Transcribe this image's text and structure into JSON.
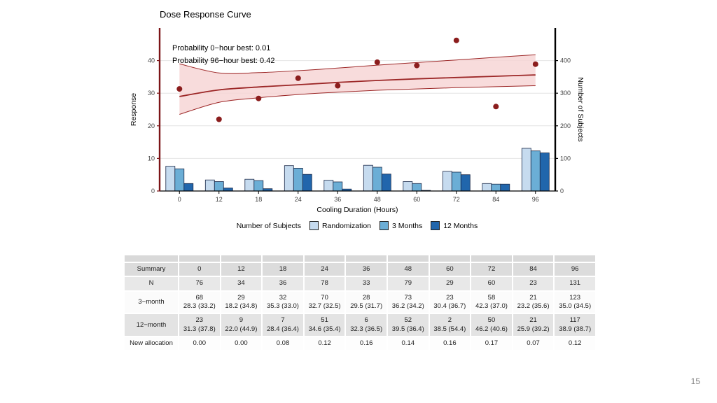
{
  "page": {
    "number": "15"
  },
  "chart": {
    "title": "Dose Response Curve",
    "legend": {
      "title": "Number of Subjects",
      "items": [
        {
          "label": "Randomization",
          "color": "#c6dbef"
        },
        {
          "label": "3 Months",
          "color": "#6baed6"
        },
        {
          "label": "12 Months",
          "color": "#2166ac"
        }
      ]
    }
  },
  "chart_data": {
    "type": "bar",
    "subtype": "dose-response curve with CI band, observed points and grouped subject-count bars",
    "title": "Dose Response Curve",
    "xlabel": "Cooling Duration (Hours)",
    "ylabel_left": "Response",
    "ylabel_right": "Number of Subjects",
    "categories": [
      "0",
      "12",
      "18",
      "24",
      "36",
      "48",
      "60",
      "72",
      "84",
      "96"
    ],
    "ylim_left": [
      0,
      50
    ],
    "ylim_right": [
      0,
      500
    ],
    "y_left_ticks": [
      0,
      10,
      20,
      30,
      40
    ],
    "y_right_ticks": [
      0,
      100,
      200,
      300,
      400
    ],
    "grid": true,
    "annotations": [
      "Probability 0−hour best: 0.01",
      "Probability 96−hour best: 0.42"
    ],
    "legend_items": [
      "Randomization",
      "3 Months",
      "12 Months"
    ],
    "bar_series": [
      {
        "name": "Randomization",
        "axis": "right",
        "color": "#c6dbef",
        "values": [
          76,
          34,
          36,
          78,
          33,
          79,
          29,
          60,
          23,
          131
        ]
      },
      {
        "name": "3 Months",
        "axis": "right",
        "color": "#6baed6",
        "values": [
          68,
          29,
          32,
          70,
          28,
          73,
          23,
          58,
          21,
          123
        ]
      },
      {
        "name": "12 Months",
        "axis": "right",
        "color": "#2166ac",
        "values": [
          23,
          9,
          7,
          51,
          6,
          52,
          2,
          50,
          21,
          117
        ]
      }
    ],
    "scatter": {
      "name": "Observed 12-month mean response",
      "axis": "left",
      "values": [
        31.3,
        22.0,
        28.4,
        34.6,
        32.3,
        39.5,
        38.5,
        46.2,
        25.9,
        38.9
      ]
    },
    "curve": {
      "name": "Fitted dose-response with confidence band",
      "axis": "left",
      "center": [
        29.0,
        31.0,
        31.9,
        32.6,
        33.3,
        33.9,
        34.4,
        34.8,
        35.2,
        35.6
      ],
      "lower": [
        23.5,
        27.2,
        28.6,
        29.6,
        30.3,
        30.9,
        31.3,
        31.7,
        32.0,
        32.3
      ],
      "upper": [
        39.0,
        36.2,
        36.3,
        36.9,
        37.7,
        38.6,
        39.4,
        40.2,
        41.0,
        41.8
      ]
    },
    "colors": {
      "axis_left": "#7c1417",
      "axis_right": "#000000",
      "curve": "#9c2727",
      "point": "#8b1d1d",
      "band_fill": "#f7d6d6",
      "bar_outline": "#1c2b4a",
      "grid": "#e4e4e4"
    }
  },
  "table": {
    "rows": [
      {
        "label": "Summary",
        "cells": [
          "0",
          "12",
          "18",
          "24",
          "36",
          "48",
          "60",
          "72",
          "84",
          "96"
        ]
      },
      {
        "label": "N",
        "cells": [
          "76",
          "34",
          "36",
          "78",
          "33",
          "79",
          "29",
          "60",
          "23",
          "131"
        ]
      },
      {
        "label": "3−month",
        "cells": [
          [
            "68",
            "28.3 (33.2)"
          ],
          [
            "29",
            "18.2 (34.8)"
          ],
          [
            "32",
            "35.3 (33.0)"
          ],
          [
            "70",
            "32.7 (32.5)"
          ],
          [
            "28",
            "29.5 (31.7)"
          ],
          [
            "73",
            "36.2 (34.2)"
          ],
          [
            "23",
            "30.4 (36.7)"
          ],
          [
            "58",
            "42.3 (37.0)"
          ],
          [
            "21",
            "23.2 (35.6)"
          ],
          [
            "123",
            "35.0 (34.5)"
          ]
        ]
      },
      {
        "label": "12−month",
        "cells": [
          [
            "23",
            "31.3 (37.8)"
          ],
          [
            "9",
            "22.0 (44.9)"
          ],
          [
            "7",
            "28.4 (36.4)"
          ],
          [
            "51",
            "34.6 (35.4)"
          ],
          [
            "6",
            "32.3 (36.5)"
          ],
          [
            "52",
            "39.5 (36.4)"
          ],
          [
            "2",
            "38.5 (54.4)"
          ],
          [
            "50",
            "46.2 (40.6)"
          ],
          [
            "21",
            "25.9 (39.2)"
          ],
          [
            "117",
            "38.9 (38.7)"
          ]
        ]
      },
      {
        "label": "New allocation",
        "cells": [
          "0.00",
          "0.00",
          "0.08",
          "0.12",
          "0.16",
          "0.14",
          "0.16",
          "0.17",
          "0.07",
          "0.12"
        ]
      }
    ]
  }
}
